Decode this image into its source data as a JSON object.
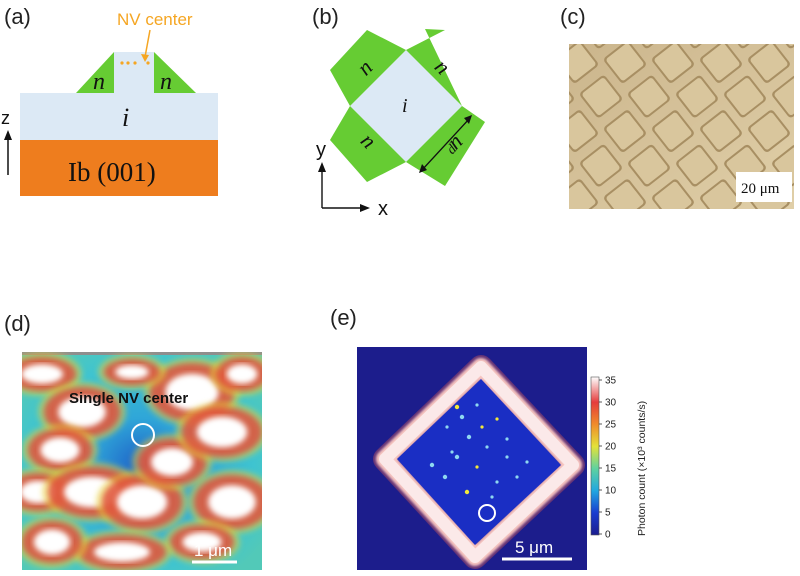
{
  "panels": {
    "a": {
      "label": "(a)",
      "annotation": "NV center",
      "layer_n_left": "n",
      "layer_n_right": "n",
      "layer_i": "i",
      "substrate": "Ib (001)",
      "axis": "z"
    },
    "b": {
      "label": "(b)",
      "n_labels": [
        "n",
        "n",
        "n",
        "n"
      ],
      "center": "i",
      "dim": "d",
      "axis_y": "y",
      "axis_x": "x"
    },
    "c": {
      "label": "(c)",
      "scale": "20 μm"
    },
    "d": {
      "label": "(d)",
      "annotation": "Single NV center",
      "scale": "1 μm"
    },
    "e": {
      "label": "(e)",
      "scale": "5 μm",
      "colorbar": {
        "title": "Photon count (×10³ counts/s)",
        "ticks": [
          "35",
          "30",
          "25",
          "20",
          "15",
          "10",
          "5",
          "0"
        ]
      }
    }
  },
  "colors": {
    "n_layer": "#66cc33",
    "i_layer": "#dce9f5",
    "substrate": "#ee7d1e",
    "nv_orange": "#f5a623",
    "bg_blue": "#1c1d8c"
  }
}
